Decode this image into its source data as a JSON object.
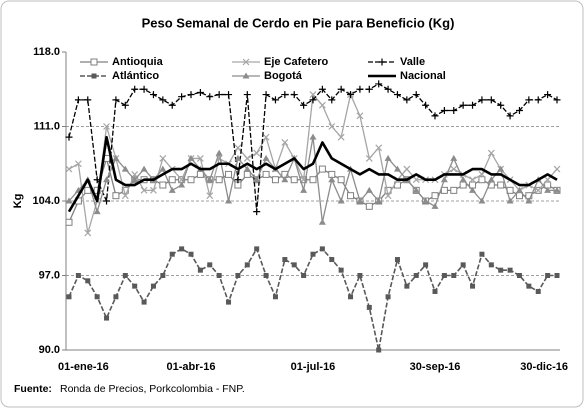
{
  "chart_data": {
    "type": "line",
    "title": "Peso Semanal de Cerdo en Pie para Beneficio (Kg)",
    "y_label": "Kg",
    "source_label": "Fuente:",
    "source": "Ronda de Precios, Porkcolombia  - FNP.",
    "categories": [
      "01-ene-16",
      null,
      null,
      null,
      null,
      null,
      null,
      null,
      null,
      null,
      null,
      null,
      null,
      "01-abr-16",
      null,
      null,
      null,
      null,
      null,
      null,
      null,
      null,
      null,
      null,
      null,
      null,
      "01-jul-16",
      null,
      null,
      null,
      null,
      null,
      null,
      null,
      null,
      null,
      null,
      null,
      null,
      "30-sep-16",
      null,
      null,
      null,
      null,
      null,
      null,
      null,
      null,
      null,
      null,
      null,
      null,
      "30-dic-16"
    ],
    "ylim": [
      90,
      118
    ],
    "yticks": [
      {
        "value": 90,
        "label": "90.0"
      },
      {
        "value": 97,
        "label": "97.0"
      },
      {
        "value": 104,
        "label": "104.0"
      },
      {
        "value": 111,
        "label": "111.0"
      },
      {
        "value": 118,
        "label": "118.0"
      }
    ],
    "grid": true,
    "legend": "top",
    "series": [
      {
        "name": "Antioquia",
        "color": "#808080",
        "marker": "square-open",
        "dash": false,
        "width": 1.3,
        "values": [
          102,
          104,
          105,
          105,
          108,
          104.5,
          105,
          106,
          106,
          106,
          105.5,
          106,
          106,
          106,
          106.5,
          106,
          106,
          106.5,
          105.5,
          106.5,
          106,
          106.5,
          106,
          106.5,
          106,
          106,
          106,
          107,
          106.5,
          106,
          104.5,
          104,
          103.5,
          104,
          105,
          105.5,
          106,
          105,
          104,
          104.5,
          105,
          105,
          105.5,
          105.5,
          106,
          105.5,
          105.5,
          105,
          104.5,
          104.5,
          105,
          105.5,
          105
        ]
      },
      {
        "name": "Eje Cafetero",
        "color": "#a6a6a6",
        "marker": "cross",
        "dash": false,
        "width": 1.3,
        "values": [
          107,
          107.5,
          101,
          104,
          111,
          108,
          104.5,
          106.5,
          105,
          105,
          108,
          107,
          106,
          108,
          108,
          104.5,
          108,
          107.5,
          109,
          108,
          108.5,
          110,
          107,
          109.5,
          108,
          106,
          114,
          113,
          111,
          110,
          114,
          112,
          108,
          109,
          104.5,
          106,
          107,
          106,
          106,
          106,
          106.5,
          107,
          106.5,
          106,
          106.5,
          108.5,
          107,
          106,
          105,
          105.5,
          105,
          106,
          107
        ]
      },
      {
        "name": "Valle",
        "color": "#000000",
        "marker": "plus",
        "dash": true,
        "width": 1.3,
        "values": [
          110,
          113.5,
          113.5,
          106,
          104,
          113.5,
          113,
          114.5,
          114.5,
          114,
          113.5,
          113,
          113.8,
          114,
          114.2,
          113.8,
          114,
          114,
          106,
          114,
          103,
          114,
          113.5,
          114,
          114,
          113,
          113.5,
          114.5,
          113.5,
          114.5,
          114,
          114.5,
          114.5,
          115,
          114.5,
          114,
          113.5,
          114,
          113,
          112,
          112.5,
          112.5,
          113,
          113,
          113.5,
          113.5,
          113,
          112,
          112.5,
          113.5,
          113.5,
          114,
          113.5
        ]
      },
      {
        "name": "Atlántico",
        "color": "#595959",
        "marker": "square",
        "dash": true,
        "width": 1.6,
        "values": [
          95,
          97,
          96.5,
          95,
          93,
          95,
          97,
          96,
          94.5,
          96,
          97,
          99,
          99.5,
          99,
          97.5,
          98,
          97,
          94.5,
          97,
          98,
          99.5,
          97,
          95,
          98.5,
          98,
          97,
          99,
          99.5,
          98.5,
          97.5,
          95,
          97,
          94,
          90,
          95,
          98.5,
          96,
          97,
          98,
          95.5,
          97,
          97,
          98,
          96,
          99,
          98,
          97.5,
          97.5,
          97,
          96,
          95.5,
          97,
          97
        ]
      },
      {
        "name": "Bogotá",
        "color": "#8c8c8c",
        "marker": "triangle",
        "dash": false,
        "width": 1.3,
        "values": [
          104,
          105,
          106,
          103,
          106,
          108,
          107,
          106,
          107,
          106,
          107,
          105,
          105.5,
          108,
          107,
          106,
          108.5,
          104,
          108,
          107,
          106,
          108,
          107,
          106,
          108,
          105,
          110,
          102,
          106,
          104,
          107,
          104,
          105,
          104,
          108,
          107,
          106,
          105,
          104,
          103.5,
          106,
          108,
          106,
          105,
          104,
          106,
          107,
          104,
          105,
          104,
          106,
          105,
          105
        ]
      },
      {
        "name": "Nacional",
        "color": "#000000",
        "marker": "none",
        "dash": false,
        "width": 2.6,
        "values": [
          103,
          104.5,
          106,
          104,
          110,
          106,
          105.5,
          105.5,
          106,
          106,
          106.5,
          107,
          107,
          107.5,
          107,
          107,
          107.5,
          107.5,
          107,
          107.5,
          107,
          107.5,
          107,
          107.5,
          108,
          107,
          107.5,
          109.5,
          108,
          107.5,
          107,
          106.5,
          107,
          106.5,
          106.5,
          106,
          106,
          106.5,
          106,
          106,
          106.5,
          106.5,
          106.5,
          107,
          107,
          106.5,
          106.5,
          106,
          105.5,
          105.5,
          106,
          106.5,
          106
        ]
      }
    ]
  }
}
